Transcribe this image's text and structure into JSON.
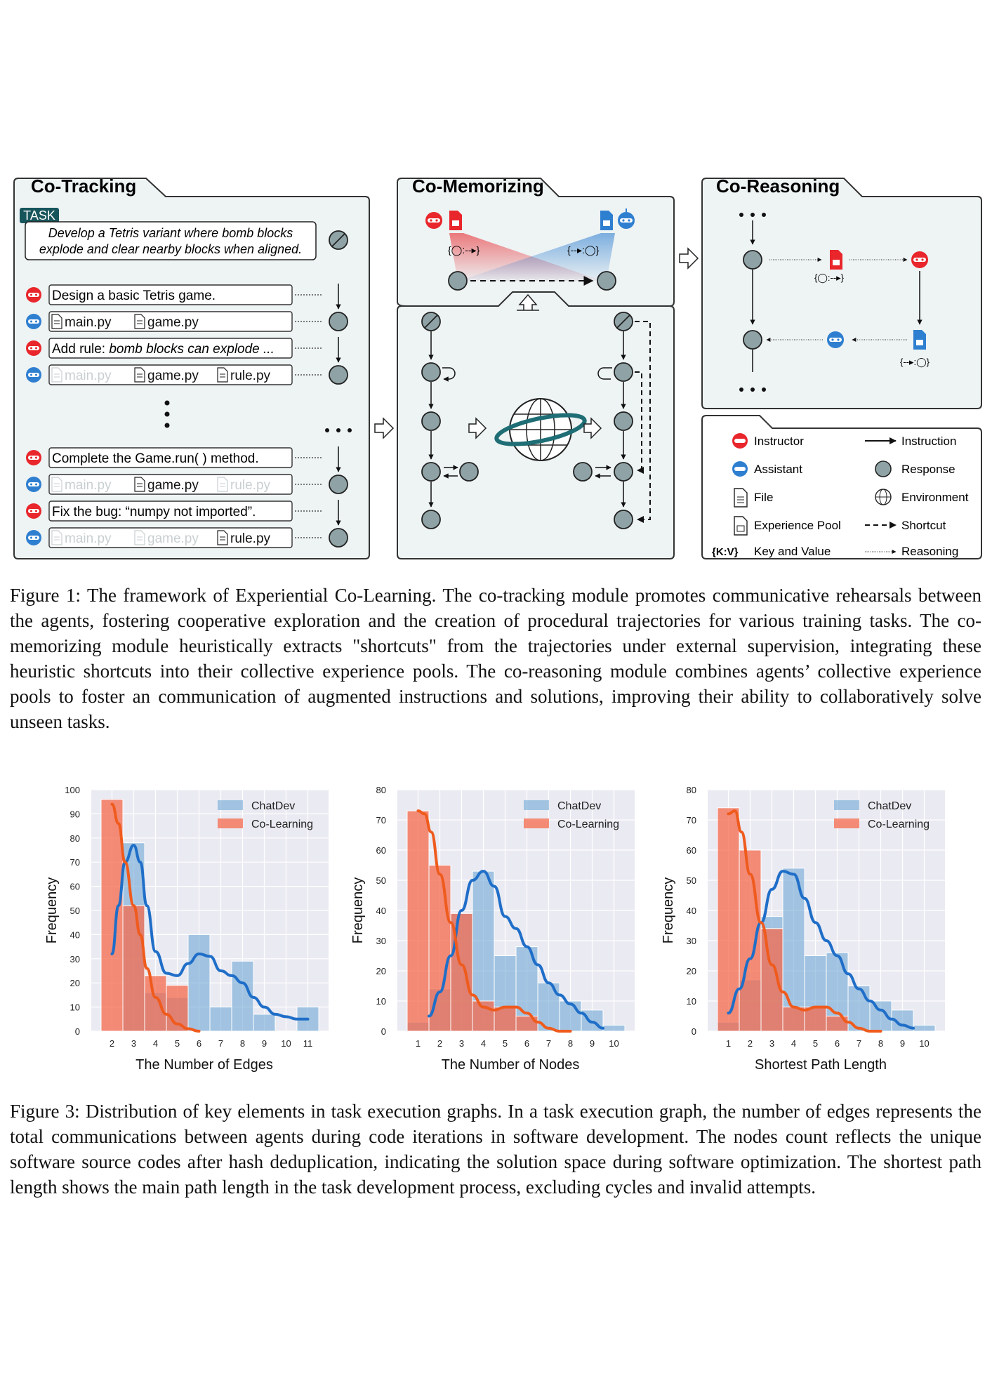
{
  "figure1": {
    "co_tracking": {
      "title": "Co-Tracking",
      "task_tag": "TASK",
      "task_text_line1": "Develop a Tetris variant where bomb blocks",
      "task_text_line2": "explode and clear nearby blocks when aligned.",
      "rows": [
        {
          "role": "instructor",
          "text": "Design a basic Tetris game."
        },
        {
          "role": "assistant",
          "files": [
            {
              "name": "main.py",
              "faded": false
            },
            {
              "name": "game.py",
              "faded": false
            }
          ]
        },
        {
          "role": "instructor",
          "text_plain": "Add rule: ",
          "text_italic": "bomb blocks can explode ..."
        },
        {
          "role": "assistant",
          "files": [
            {
              "name": "main.py",
              "faded": true
            },
            {
              "name": "game.py",
              "faded": false
            },
            {
              "name": "rule.py",
              "faded": false
            }
          ]
        },
        {
          "role": "instructor",
          "text": "Complete the Game.run( ) method."
        },
        {
          "role": "assistant",
          "files": [
            {
              "name": "main.py",
              "faded": true
            },
            {
              "name": "game.py",
              "faded": false
            },
            {
              "name": "rule.py",
              "faded": true
            }
          ]
        },
        {
          "role": "instructor",
          "text": "Fix the bug: “numpy not imported”."
        },
        {
          "role": "assistant",
          "files": [
            {
              "name": "main.py",
              "faded": true
            },
            {
              "name": "game.py",
              "faded": true
            },
            {
              "name": "rule.py",
              "faded": false
            }
          ]
        }
      ]
    },
    "co_memorizing": {
      "title": "Co-Memorizing",
      "kv_left": "{◯:--▸}",
      "kv_right": "{--▸:◯}"
    },
    "co_reasoning": {
      "title": "Co-Reasoning",
      "kv_top": "{◯:--▸}",
      "kv_bottom": "{--▸:◯}"
    },
    "legend": {
      "instructor": "Instructor",
      "assistant": "Assistant",
      "file": "File",
      "experience_pool": "Experience Pool",
      "key_value_symbol": "{K:V}",
      "key_value": "Key and Value",
      "instruction": "Instruction",
      "response": "Response",
      "environment": "Environment",
      "shortcut": "Shortcut",
      "reasoning": "Reasoning"
    },
    "colors": {
      "instructor": "#e8262b",
      "assistant": "#2f7fd0",
      "node": "#8fa3a6",
      "panel_bg": "#eef3f4"
    }
  },
  "caption1": "Figure 1: The framework of Experiential Co-Learning. The co-tracking module promotes communicative rehearsals between the agents, fostering cooperative exploration and the creation of procedural trajectories for various training tasks. The co-memorizing module heuristically extracts \"shortcuts\" from the trajectories under external supervision, integrating these heuristic shortcuts into their collective experience pools. The co-reasoning module combines agents’ collective experience pools to foster an communication of augmented instructions and solutions, improving their ability to collaboratively solve unseen tasks.",
  "chart_data": [
    {
      "type": "bar",
      "title": "",
      "xlabel": "The Number of Edges",
      "ylabel": "Frequency",
      "categories": [
        "2",
        "3",
        "4",
        "5",
        "6",
        "7",
        "8",
        "9",
        "10",
        "11"
      ],
      "ylim": [
        0,
        100
      ],
      "yticks": [
        0,
        10,
        20,
        30,
        40,
        50,
        60,
        70,
        80,
        90,
        100
      ],
      "legend_position": "top-right",
      "series": [
        {
          "name": "ChatDev",
          "color": "#6fa8d6",
          "values": [
            0,
            78,
            16,
            14,
            40,
            10,
            29,
            7,
            0,
            10
          ]
        },
        {
          "name": "Co-Learning",
          "color": "#f4694c",
          "values": [
            96,
            52,
            23,
            19,
            0,
            0,
            0,
            0,
            0,
            0
          ]
        }
      ],
      "kde": [
        {
          "series": "ChatDev",
          "color": "#1f6ec8",
          "x": [
            2,
            2.3,
            2.6,
            3,
            3.3,
            3.6,
            4,
            4.5,
            5,
            5.5,
            6,
            6.5,
            7,
            7.5,
            8,
            8.5,
            9,
            9.5,
            10,
            10.5,
            11
          ],
          "y": [
            32,
            52,
            70,
            77,
            70,
            52,
            33,
            24,
            23,
            28,
            32,
            31,
            25,
            23,
            20,
            14,
            10,
            7,
            6,
            5,
            5
          ]
        },
        {
          "series": "Co-Learning",
          "color": "#ef5b1d",
          "x": [
            2,
            2.3,
            2.6,
            3,
            3.3,
            3.6,
            4,
            4.5,
            5,
            5.5,
            6
          ],
          "y": [
            94,
            86,
            70,
            52,
            40,
            26,
            14,
            7,
            3,
            1,
            0
          ]
        }
      ]
    },
    {
      "type": "bar",
      "title": "",
      "xlabel": "The Number of Nodes",
      "ylabel": "Frequency",
      "categories": [
        "1",
        "2",
        "3",
        "4",
        "5",
        "6",
        "7",
        "8",
        "9",
        "10"
      ],
      "ylim": [
        0,
        80
      ],
      "yticks": [
        0,
        10,
        20,
        30,
        40,
        50,
        60,
        70,
        80
      ],
      "legend_position": "top-right",
      "series": [
        {
          "name": "ChatDev",
          "color": "#6fa8d6",
          "values": [
            3,
            14,
            39,
            53,
            25,
            28,
            16,
            10,
            7,
            2
          ]
        },
        {
          "name": "Co-Learning",
          "color": "#f4694c",
          "values": [
            73,
            55,
            39,
            10,
            8,
            5,
            0,
            0,
            0,
            0
          ]
        }
      ],
      "kde": [
        {
          "series": "ChatDev",
          "color": "#1f6ec8",
          "x": [
            1.5,
            2,
            2.5,
            3,
            3.5,
            4,
            4.5,
            5,
            5.5,
            6,
            6.5,
            7,
            7.5,
            8,
            8.5,
            9,
            9.5
          ],
          "y": [
            5,
            13,
            25,
            40,
            50,
            53,
            48,
            38,
            34,
            28,
            22,
            16,
            12,
            9,
            6,
            3,
            1
          ]
        },
        {
          "series": "Co-Learning",
          "color": "#ef5b1d",
          "x": [
            1,
            1.3,
            1.6,
            2,
            2.5,
            3,
            3.5,
            4,
            4.5,
            5,
            5.5,
            6,
            6.5,
            7,
            7.5,
            8
          ],
          "y": [
            73,
            72,
            66,
            52,
            36,
            22,
            12,
            8,
            7,
            8,
            8,
            6,
            3,
            1,
            0,
            0
          ]
        }
      ]
    },
    {
      "type": "bar",
      "title": "",
      "xlabel": "Shortest Path Length",
      "ylabel": "Frequency",
      "categories": [
        "1",
        "2",
        "3",
        "4",
        "5",
        "6",
        "7",
        "8",
        "9",
        "10"
      ],
      "ylim": [
        0,
        80
      ],
      "yticks": [
        0,
        10,
        20,
        30,
        40,
        50,
        60,
        70,
        80
      ],
      "legend_position": "top-right",
      "series": [
        {
          "name": "ChatDev",
          "color": "#6fa8d6",
          "values": [
            3,
            17,
            38,
            54,
            25,
            26,
            15,
            10,
            7,
            2
          ]
        },
        {
          "name": "Co-Learning",
          "color": "#f4694c",
          "values": [
            74,
            60,
            34,
            8,
            8,
            5,
            0,
            0,
            0,
            0
          ]
        }
      ],
      "kde": [
        {
          "series": "ChatDev",
          "color": "#1f6ec8",
          "x": [
            1,
            1.5,
            2,
            2.5,
            3,
            3.5,
            4,
            4.5,
            5,
            5.5,
            6,
            6.5,
            7,
            7.5,
            8,
            8.5,
            9,
            9.5
          ],
          "y": [
            6,
            14,
            24,
            36,
            47,
            53,
            52,
            44,
            36,
            30,
            25,
            19,
            14,
            10,
            7,
            4,
            2,
            1
          ]
        },
        {
          "series": "Co-Learning",
          "color": "#ef5b1d",
          "x": [
            1,
            1.3,
            1.6,
            2,
            2.5,
            3,
            3.5,
            4,
            4.5,
            5,
            5.5,
            6,
            6.5,
            7,
            7.5,
            8
          ],
          "y": [
            72,
            73,
            66,
            52,
            36,
            22,
            13,
            8,
            7,
            8,
            8,
            6,
            3,
            1,
            0,
            0
          ]
        }
      ]
    }
  ],
  "caption3": "Figure 3: Distribution of key elements in task execution graphs. In a task execution graph, the number of edges represents the total communications between agents during code iterations in software development. The nodes count reflects the unique software source codes after hash deduplication, indicating the solution space during software optimization. The shortest path length shows the main path length in the task development process, excluding cycles and invalid attempts."
}
